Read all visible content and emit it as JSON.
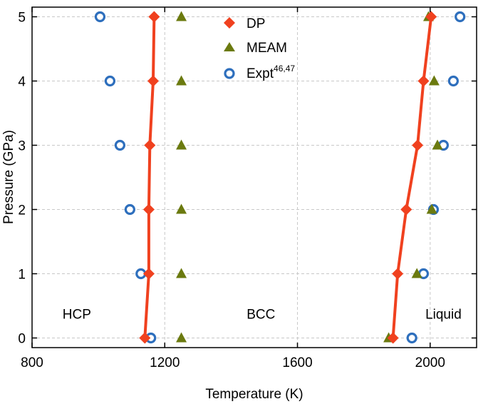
{
  "chart_data": {
    "type": "scatter",
    "xlabel": "Temperature (K)",
    "ylabel": "Pressure (GPa)",
    "xlim": [
      800,
      2140
    ],
    "ylim": [
      -0.15,
      5.15
    ],
    "xticks": [
      800,
      1200,
      1600,
      2000
    ],
    "xtick_labels": [
      "800",
      "1200",
      "1600",
      "2000"
    ],
    "yticks": [
      0,
      1,
      2,
      3,
      4,
      5
    ],
    "ytick_labels": [
      "0",
      "1",
      "2",
      "3",
      "4",
      "5"
    ],
    "grid": true,
    "legend_position": "top-center",
    "series": [
      {
        "name": "DP",
        "legend_label": "DP",
        "marker": "diamond",
        "color": "#f0411f",
        "connect": true,
        "branches": [
          {
            "phase_boundary": "HCP-BCC",
            "x": [
              1140,
              1152,
              1152,
              1155,
              1165,
              1168
            ],
            "y": [
              0,
              1,
              2,
              3,
              4,
              5
            ]
          },
          {
            "phase_boundary": "BCC-Liquid",
            "x": [
              1888,
              1902,
              1928,
              1962,
              1980,
              2003
            ],
            "y": [
              0,
              1,
              2,
              3,
              4,
              5
            ]
          }
        ]
      },
      {
        "name": "MEAM",
        "legend_label": "MEAM",
        "marker": "triangle",
        "color": "#6b7a0f",
        "connect": false,
        "branches": [
          {
            "phase_boundary": "HCP-BCC",
            "x": [
              1250,
              1250,
              1250,
              1250,
              1250,
              1250
            ],
            "y": [
              0,
              1,
              2,
              3,
              4,
              5
            ]
          },
          {
            "phase_boundary": "BCC-Liquid",
            "x": [
              1875,
              1960,
              2005,
              2022,
              2012,
              1995
            ],
            "y": [
              0,
              1,
              2,
              3,
              4,
              5
            ]
          }
        ]
      },
      {
        "name": "Expt",
        "legend_label": "Expt",
        "legend_superscript": "46,47",
        "marker": "open-circle",
        "color": "#2e6fbd",
        "connect": false,
        "branches": [
          {
            "phase_boundary": "HCP-BCC",
            "x": [
              1158,
              1128,
              1095,
              1065,
              1035,
              1005
            ],
            "y": [
              0,
              1,
              2,
              3,
              4,
              5
            ]
          },
          {
            "phase_boundary": "BCC-Liquid",
            "x": [
              1945,
              1980,
              2010,
              2040,
              2070,
              2090
            ],
            "y": [
              0,
              1,
              2,
              3,
              4,
              5
            ]
          }
        ]
      }
    ],
    "annotations": [
      {
        "text": "HCP",
        "x": 935,
        "y": 0.3
      },
      {
        "text": "BCC",
        "x": 1490,
        "y": 0.3
      },
      {
        "text": "Liquid",
        "x": 2040,
        "y": 0.3
      }
    ]
  }
}
